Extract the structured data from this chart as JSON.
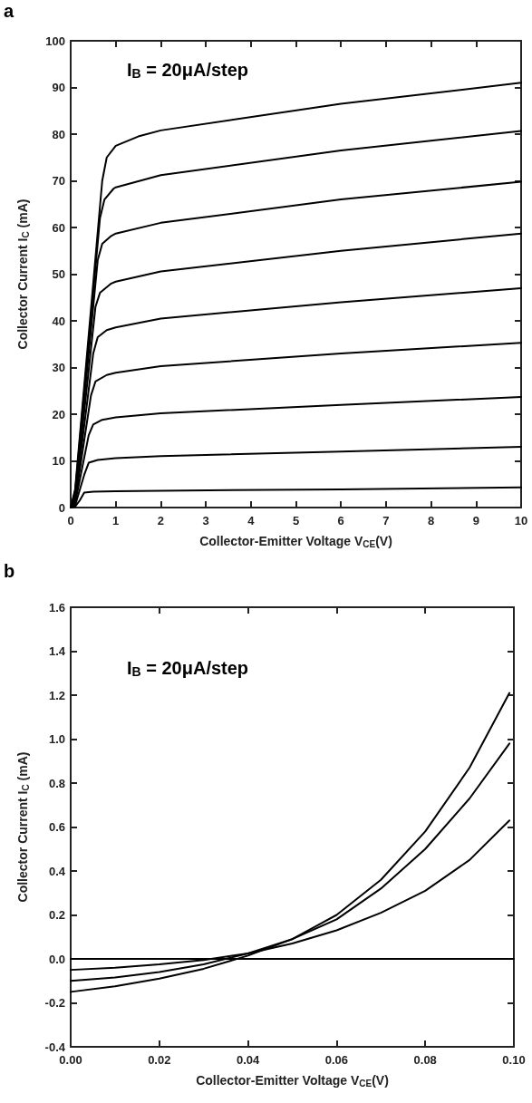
{
  "chart_data": [
    {
      "type": "line",
      "title": "a",
      "xlabel": "Collector-Emitter Voltage V$_{CE}$(V)",
      "ylabel": "Collector Current I$_{C}$ (mA)",
      "annotations": [
        "I$_{B}$ = 20μA/step"
      ],
      "xlim": [
        0,
        10
      ],
      "ylim": [
        0,
        100
      ],
      "xticks": [
        0,
        1,
        2,
        3,
        4,
        5,
        6,
        7,
        8,
        9,
        10
      ],
      "yticks": [
        0,
        10,
        20,
        30,
        40,
        50,
        60,
        70,
        80,
        90,
        100
      ],
      "grid": false,
      "marker": "none",
      "line_style": "solid",
      "series": [
        {
          "color": "#000000",
          "x": [
            0,
            0.1,
            0.2,
            0.3,
            0.5,
            1,
            2,
            6,
            10
          ],
          "values": [
            0,
            0.2,
            1.5,
            3.2,
            3.4,
            3.5,
            3.6,
            3.9,
            4.3
          ]
        },
        {
          "color": "#000000",
          "x": [
            0,
            0.1,
            0.3,
            0.4,
            0.6,
            1,
            2,
            6,
            10
          ],
          "values": [
            0,
            0.5,
            7,
            9.6,
            10.2,
            10.6,
            11,
            12,
            13
          ]
        },
        {
          "color": "#000000",
          "x": [
            0,
            0.1,
            0.4,
            0.5,
            0.7,
            1,
            2,
            6,
            10
          ],
          "values": [
            0,
            1,
            15.5,
            17.8,
            18.8,
            19.3,
            20.2,
            22,
            23.7
          ]
        },
        {
          "color": "#000000",
          "x": [
            0,
            0.1,
            0.45,
            0.55,
            0.8,
            1,
            2,
            6,
            10
          ],
          "values": [
            0,
            1.5,
            24,
            27,
            28.4,
            28.9,
            30.3,
            33,
            35.3
          ]
        },
        {
          "color": "#000000",
          "x": [
            0,
            0.1,
            0.5,
            0.6,
            0.8,
            1,
            2,
            6,
            10
          ],
          "values": [
            0,
            2,
            33,
            36.5,
            38,
            38.6,
            40.5,
            44,
            47
          ]
        },
        {
          "color": "#000000",
          "x": [
            0,
            0.1,
            0.55,
            0.65,
            0.9,
            1,
            2,
            6,
            10
          ],
          "values": [
            0,
            2.5,
            43,
            46,
            48,
            48.4,
            50.6,
            55,
            58.7
          ]
        },
        {
          "color": "#000000",
          "x": [
            0,
            0.1,
            0.6,
            0.7,
            0.9,
            1,
            2,
            6,
            10
          ],
          "values": [
            0,
            3,
            53,
            56.5,
            58.2,
            58.7,
            61,
            66,
            69.8
          ]
        },
        {
          "color": "#000000",
          "x": [
            0,
            0.1,
            0.65,
            0.75,
            0.95,
            1,
            2,
            6,
            10
          ],
          "values": [
            0,
            3.5,
            62,
            66,
            68.3,
            68.6,
            71.2,
            76.5,
            80.7
          ]
        },
        {
          "color": "#000000",
          "x": [
            0,
            0.1,
            0.7,
            0.8,
            1,
            1.5,
            2,
            6,
            10
          ],
          "values": [
            0,
            4,
            70,
            75,
            77.5,
            79.5,
            80.8,
            86.5,
            91
          ]
        }
      ]
    },
    {
      "type": "line",
      "title": "b",
      "xlabel": "Collector-Emitter Voltage V$_{CE}$(V)",
      "ylabel": "Collector Current I$_{C}$ (mA)",
      "annotations": [
        "I$_{B}$ = 20μA/step"
      ],
      "xlim": [
        0,
        0.1
      ],
      "ylim": [
        -0.4,
        1.6
      ],
      "xticks": [
        {
          "value": 0,
          "label": "0.00"
        },
        {
          "value": 0.02,
          "label": "0.02"
        },
        {
          "value": 0.04,
          "label": "0.04"
        },
        {
          "value": 0.06,
          "label": "0.06"
        },
        {
          "value": 0.08,
          "label": "0.08"
        },
        {
          "value": 0.1,
          "label": "0.10"
        }
      ],
      "yticks": [
        -0.4,
        -0.2,
        {
          "value": 0,
          "label": "0.0"
        },
        0.2,
        0.4,
        0.6,
        0.8,
        {
          "value": 1,
          "label": "1.0"
        },
        1.2,
        1.4,
        1.6
      ],
      "grid": false,
      "marker": "none",
      "line_style": "solid",
      "series": [
        {
          "color": "#000000",
          "x": [
            0,
            0.1
          ],
          "values": [
            0,
            0
          ]
        },
        {
          "color": "#000000",
          "x": [
            0,
            0.01,
            0.02,
            0.03,
            0.04,
            0.05,
            0.06,
            0.07,
            0.08,
            0.09,
            0.099
          ],
          "values": [
            -0.05,
            -0.04,
            -0.025,
            -0.005,
            0.025,
            0.07,
            0.13,
            0.21,
            0.31,
            0.45,
            0.63
          ]
        },
        {
          "color": "#000000",
          "x": [
            0,
            0.01,
            0.02,
            0.03,
            0.04,
            0.05,
            0.06,
            0.07,
            0.08,
            0.09,
            0.099
          ],
          "values": [
            -0.1,
            -0.085,
            -0.06,
            -0.025,
            0.025,
            0.09,
            0.18,
            0.32,
            0.5,
            0.73,
            0.98
          ]
        },
        {
          "color": "#000000",
          "x": [
            0,
            0.01,
            0.02,
            0.03,
            0.04,
            0.05,
            0.06,
            0.07,
            0.08,
            0.09,
            0.099
          ],
          "values": [
            -0.15,
            -0.125,
            -0.09,
            -0.045,
            0.015,
            0.09,
            0.2,
            0.36,
            0.58,
            0.87,
            1.21
          ]
        }
      ]
    }
  ]
}
